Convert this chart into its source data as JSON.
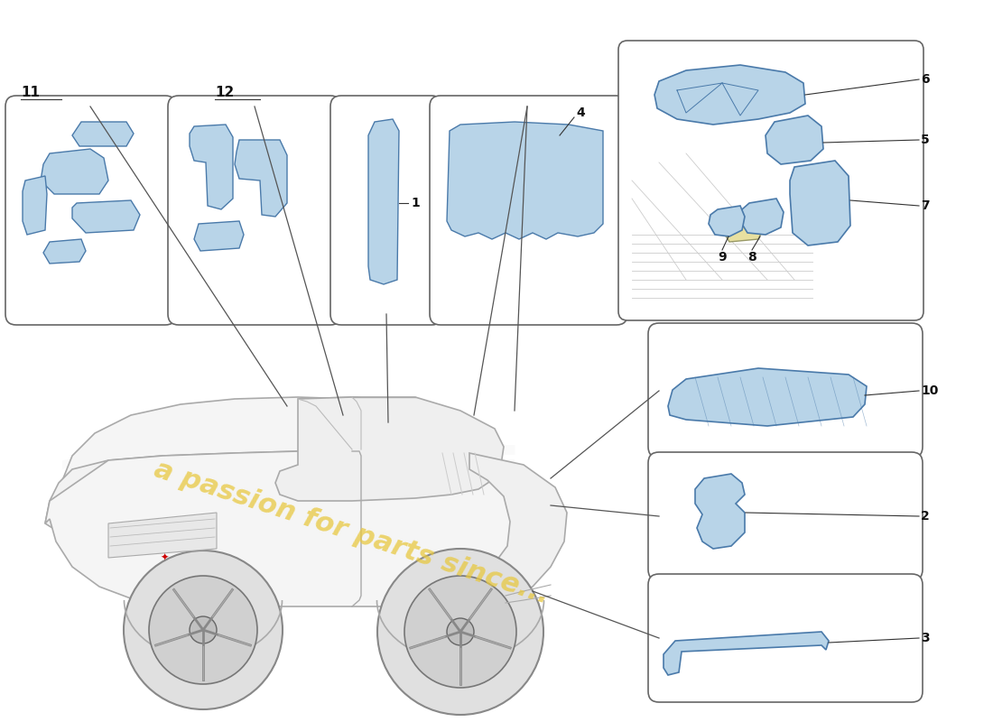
{
  "background_color": "#ffffff",
  "part_color": "#b8d4e8",
  "part_color2": "#a0c0dc",
  "part_edge_color": "#4a7aaa",
  "box_edge_color": "#666666",
  "line_color": "#333333",
  "text_color": "#111111",
  "watermark_text": "a passion for parts since...",
  "watermark_color": "#e8c840",
  "car_line_color": "#999999",
  "car_fill_color": "#f8f8f8",
  "label_fontsize": 11,
  "num_fontsize": 10
}
